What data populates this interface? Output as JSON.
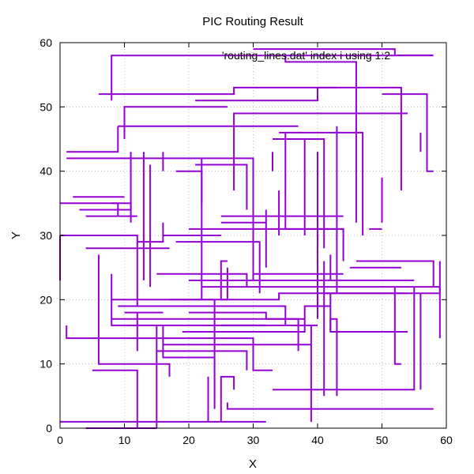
{
  "chart_data": {
    "type": "line",
    "title": "PIC Routing Result",
    "xlabel": "X",
    "ylabel": "Y",
    "xlim": [
      0,
      60
    ],
    "ylim": [
      0,
      60
    ],
    "xticks": [
      0,
      10,
      20,
      30,
      40,
      50,
      60
    ],
    "yticks": [
      0,
      10,
      20,
      30,
      40,
      50,
      60
    ],
    "grid": true,
    "legend_position": "top-right",
    "series": [
      {
        "name": "'routing_lines.dat' index i using 1:2",
        "color": "#9400d3",
        "segments": [
          [
            [
              8,
              51
            ],
            [
              8,
              58
            ],
            [
              58,
              58
            ]
          ],
          [
            [
              6,
              52
            ],
            [
              27,
              52
            ],
            [
              27,
              53
            ],
            [
              53,
              53
            ],
            [
              53,
              37
            ]
          ],
          [
            [
              35,
              58
            ],
            [
              35,
              57
            ],
            [
              46,
              57
            ],
            [
              46,
              32
            ]
          ],
          [
            [
              21,
              51
            ],
            [
              40,
              51
            ],
            [
              40,
              53
            ],
            [
              43,
              53
            ]
          ],
          [
            [
              30,
              59
            ],
            [
              52,
              59
            ],
            [
              52,
              58
            ]
          ],
          [
            [
              50,
              52
            ],
            [
              57,
              52
            ],
            [
              57,
              40
            ],
            [
              58,
              40
            ]
          ],
          [
            [
              10,
              45
            ],
            [
              10,
              50
            ],
            [
              26,
              50
            ]
          ],
          [
            [
              9,
              47
            ],
            [
              37,
              47
            ]
          ],
          [
            [
              27,
              37
            ],
            [
              27,
              49
            ],
            [
              54,
              49
            ]
          ],
          [
            [
              1,
              43
            ],
            [
              9,
              43
            ],
            [
              9,
              47
            ]
          ],
          [
            [
              1,
              42
            ],
            [
              30,
              42
            ],
            [
              30,
              23
            ]
          ],
          [
            [
              33,
              45
            ],
            [
              41,
              45
            ],
            [
              41,
              28
            ]
          ],
          [
            [
              34,
              46
            ],
            [
              47,
              46
            ],
            [
              47,
              30
            ]
          ],
          [
            [
              35,
              46
            ],
            [
              35,
              31
            ],
            [
              44,
              31
            ],
            [
              44,
              26
            ]
          ],
          [
            [
              43,
              47
            ],
            [
              43,
              21
            ]
          ],
          [
            [
              56,
              46
            ],
            [
              56,
              43
            ]
          ],
          [
            [
              21,
              41
            ],
            [
              29,
              41
            ],
            [
              29,
              34
            ]
          ],
          [
            [
              40,
              37
            ],
            [
              40,
              43
            ]
          ],
          [
            [
              13,
              43
            ],
            [
              13,
              23
            ]
          ],
          [
            [
              16,
              40
            ],
            [
              16,
              43
            ]
          ],
          [
            [
              11,
              43
            ],
            [
              11,
              32
            ]
          ],
          [
            [
              18,
              40
            ],
            [
              22,
              40
            ],
            [
              22,
              35
            ]
          ],
          [
            [
              22,
              42
            ],
            [
              22,
              20
            ]
          ],
          [
            [
              14,
              41
            ],
            [
              14,
              22
            ]
          ],
          [
            [
              8,
              35
            ],
            [
              9,
              35
            ],
            [
              9,
              33
            ]
          ],
          [
            [
              2,
              36
            ],
            [
              10,
              36
            ]
          ],
          [
            [
              0,
              35
            ],
            [
              11,
              35
            ],
            [
              11,
              34
            ]
          ],
          [
            [
              3,
              34
            ],
            [
              11,
              34
            ]
          ],
          [
            [
              4,
              33
            ],
            [
              12,
              33
            ]
          ],
          [
            [
              25,
              33
            ],
            [
              44,
              33
            ]
          ],
          [
            [
              25,
              32
            ],
            [
              32,
              32
            ]
          ],
          [
            [
              20,
              31
            ],
            [
              44,
              31
            ]
          ],
          [
            [
              16,
              30
            ],
            [
              25,
              30
            ]
          ],
          [
            [
              1,
              30
            ],
            [
              6,
              30
            ]
          ],
          [
            [
              0,
              30
            ],
            [
              0,
              23
            ]
          ],
          [
            [
              0,
              30
            ],
            [
              12,
              30
            ],
            [
              12,
              29
            ],
            [
              14,
              29
            ]
          ],
          [
            [
              4,
              28
            ],
            [
              17,
              28
            ]
          ],
          [
            [
              14,
              29
            ],
            [
              16,
              29
            ],
            [
              16,
              32
            ]
          ],
          [
            [
              12,
              29
            ],
            [
              12,
              19
            ]
          ],
          [
            [
              18,
              29
            ],
            [
              31,
              29
            ],
            [
              31,
              21
            ]
          ],
          [
            [
              32,
              34
            ],
            [
              32,
              25
            ]
          ],
          [
            [
              33,
              43
            ],
            [
              33,
              40
            ]
          ],
          [
            [
              34,
              37
            ],
            [
              34,
              30
            ]
          ],
          [
            [
              38,
              45
            ],
            [
              38,
              30
            ]
          ],
          [
            [
              42,
              27
            ],
            [
              42,
              23
            ]
          ],
          [
            [
              50,
              32
            ],
            [
              50,
              39
            ]
          ],
          [
            [
              48,
              31
            ],
            [
              50,
              31
            ]
          ],
          [
            [
              46,
              26
            ],
            [
              58,
              26
            ],
            [
              58,
              22
            ]
          ],
          [
            [
              45,
              25
            ],
            [
              53,
              25
            ]
          ],
          [
            [
              44,
              24
            ],
            [
              30,
              24
            ]
          ],
          [
            [
              26,
              25
            ],
            [
              26,
              20
            ],
            [
              25,
              20
            ],
            [
              25,
              26
            ],
            [
              26,
              26
            ]
          ],
          [
            [
              15,
              24
            ],
            [
              29,
              24
            ],
            [
              29,
              22
            ]
          ],
          [
            [
              20,
              23
            ],
            [
              55,
              23
            ]
          ],
          [
            [
              22,
              22
            ],
            [
              59,
              22
            ],
            [
              59,
              14
            ]
          ],
          [
            [
              56,
              21
            ],
            [
              56,
              6
            ]
          ],
          [
            [
              55,
              21
            ],
            [
              59,
              21
            ],
            [
              59,
              26
            ]
          ],
          [
            [
              8,
              20
            ],
            [
              24,
              20
            ],
            [
              24,
              17
            ]
          ],
          [
            [
              17,
              20
            ],
            [
              34,
              20
            ],
            [
              34,
              21
            ],
            [
              55,
              21
            ]
          ],
          [
            [
              10,
              18
            ],
            [
              16,
              18
            ]
          ],
          [
            [
              9,
              19
            ],
            [
              35,
              19
            ],
            [
              35,
              16
            ]
          ],
          [
            [
              8,
              17
            ],
            [
              37,
              17
            ],
            [
              37,
              12
            ]
          ],
          [
            [
              8,
              24
            ],
            [
              8,
              16
            ],
            [
              39,
              16
            ]
          ],
          [
            [
              20,
              18
            ],
            [
              32,
              18
            ],
            [
              32,
              17
            ],
            [
              38,
              17
            ]
          ],
          [
            [
              19,
              15
            ],
            [
              38,
              15
            ],
            [
              38,
              19
            ],
            [
              42,
              19
            ]
          ],
          [
            [
              25,
              16
            ],
            [
              32,
              16
            ]
          ],
          [
            [
              16,
              14
            ],
            [
              30,
              14
            ],
            [
              30,
              9
            ],
            [
              33,
              9
            ]
          ],
          [
            [
              16,
              13
            ],
            [
              39,
              13
            ]
          ],
          [
            [
              15,
              12
            ],
            [
              29,
              12
            ],
            [
              29,
              9
            ]
          ],
          [
            [
              16,
              16
            ],
            [
              16,
              11
            ],
            [
              24,
              11
            ]
          ],
          [
            [
              1,
              16
            ],
            [
              1,
              14
            ],
            [
              17,
              14
            ]
          ],
          [
            [
              6,
              27
            ],
            [
              6,
              10
            ],
            [
              17,
              10
            ],
            [
              17,
              8
            ]
          ],
          [
            [
              12,
              12
            ],
            [
              12,
              18
            ]
          ],
          [
            [
              5,
              9
            ],
            [
              12,
              9
            ],
            [
              12,
              0
            ]
          ],
          [
            [
              15,
              16
            ],
            [
              15,
              0
            ]
          ],
          [
            [
              4,
              0
            ],
            [
              15,
              0
            ]
          ],
          [
            [
              0,
              1
            ],
            [
              32,
              1
            ]
          ],
          [
            [
              23,
              1
            ],
            [
              23,
              8
            ]
          ],
          [
            [
              24,
              3
            ],
            [
              24,
              17
            ]
          ],
          [
            [
              25,
              1
            ],
            [
              25,
              8
            ],
            [
              27,
              8
            ],
            [
              27,
              6
            ]
          ],
          [
            [
              26,
              4
            ],
            [
              26,
              3
            ],
            [
              58,
              3
            ]
          ],
          [
            [
              39,
              1
            ],
            [
              39,
              16
            ],
            [
              40,
              16
            ]
          ],
          [
            [
              33,
              6
            ],
            [
              55,
              6
            ],
            [
              55,
              22
            ]
          ],
          [
            [
              41,
              5
            ],
            [
              41,
              26
            ]
          ],
          [
            [
              40,
              17
            ],
            [
              40,
              43
            ]
          ],
          [
            [
              42,
              15
            ],
            [
              42,
              17
            ],
            [
              43,
              17
            ],
            [
              43,
              5
            ]
          ],
          [
            [
              42,
              21
            ],
            [
              42,
              15
            ],
            [
              54,
              15
            ]
          ],
          [
            [
              41,
              21
            ],
            [
              54,
              21
            ]
          ],
          [
            [
              52,
              10
            ],
            [
              53,
              10
            ],
            [
              52,
              10
            ],
            [
              52,
              22
            ]
          ]
        ]
      }
    ]
  }
}
